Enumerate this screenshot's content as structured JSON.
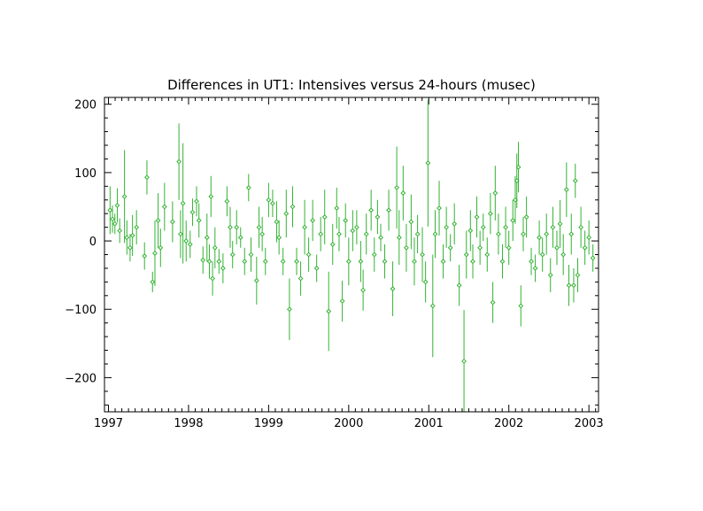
{
  "chart_data": {
    "type": "scatter",
    "title": "Differences in UT1: Intensives versus 24-hours (musec)",
    "xlabel": "",
    "ylabel": "",
    "xlim": [
      1996.95,
      2003.12
    ],
    "ylim": [
      -250,
      210
    ],
    "x_ticks": [
      1997,
      1998,
      1999,
      2000,
      2001,
      2002,
      2003
    ],
    "x_tick_labels": [
      "1997",
      "1998",
      "1999",
      "2000",
      "2001",
      "2002",
      "2003"
    ],
    "y_ticks": [
      200,
      100,
      0,
      -100,
      -200
    ],
    "y_tick_labels": [
      "200",
      "100",
      "0",
      "−100",
      "−200"
    ],
    "grid": false,
    "legend": "none",
    "series": [
      {
        "marker": "open-diamond-with-error-bar",
        "color": "#33b233",
        "points": [
          {
            "x": 1997.02,
            "y": 45,
            "err": 35
          },
          {
            "x": 1997.05,
            "y": 32,
            "err": 20
          },
          {
            "x": 1997.08,
            "y": 25,
            "err": 15
          },
          {
            "x": 1997.11,
            "y": 52,
            "err": 25
          },
          {
            "x": 1997.14,
            "y": 15,
            "err": 18
          },
          {
            "x": 1997.2,
            "y": 65,
            "err": 68
          },
          {
            "x": 1997.23,
            "y": 5,
            "err": 25
          },
          {
            "x": 1997.27,
            "y": -10,
            "err": 20
          },
          {
            "x": 1997.3,
            "y": 8,
            "err": 30
          },
          {
            "x": 1997.35,
            "y": 20,
            "err": 25
          },
          {
            "x": 1997.45,
            "y": -22,
            "err": 20
          },
          {
            "x": 1997.48,
            "y": 93,
            "err": 25
          },
          {
            "x": 1997.55,
            "y": -60,
            "err": 15
          },
          {
            "x": 1997.58,
            "y": -18,
            "err": 48
          },
          {
            "x": 1997.62,
            "y": 30,
            "err": 40
          },
          {
            "x": 1997.65,
            "y": -10,
            "err": 28
          },
          {
            "x": 1997.7,
            "y": 50,
            "err": 35
          },
          {
            "x": 1997.8,
            "y": 28,
            "err": 30
          },
          {
            "x": 1997.88,
            "y": 116,
            "err": 56
          },
          {
            "x": 1997.9,
            "y": 10,
            "err": 35
          },
          {
            "x": 1997.93,
            "y": 55,
            "err": 88
          },
          {
            "x": 1997.97,
            "y": 0,
            "err": 30
          },
          {
            "x": 1998.02,
            "y": -5,
            "err": 20
          },
          {
            "x": 1998.05,
            "y": 42,
            "err": 20
          },
          {
            "x": 1998.1,
            "y": 58,
            "err": 22
          },
          {
            "x": 1998.13,
            "y": 30,
            "err": 25
          },
          {
            "x": 1998.18,
            "y": -28,
            "err": 20
          },
          {
            "x": 1998.23,
            "y": 5,
            "err": 35
          },
          {
            "x": 1998.26,
            "y": -30,
            "err": 25
          },
          {
            "x": 1998.28,
            "y": 65,
            "err": 30
          },
          {
            "x": 1998.3,
            "y": -55,
            "err": 25
          },
          {
            "x": 1998.33,
            "y": -10,
            "err": 30
          },
          {
            "x": 1998.38,
            "y": -30,
            "err": 18
          },
          {
            "x": 1998.43,
            "y": -40,
            "err": 22
          },
          {
            "x": 1998.48,
            "y": 58,
            "err": 22
          },
          {
            "x": 1998.52,
            "y": 20,
            "err": 30
          },
          {
            "x": 1998.55,
            "y": -20,
            "err": 20
          },
          {
            "x": 1998.6,
            "y": 20,
            "err": 25
          },
          {
            "x": 1998.65,
            "y": 5,
            "err": 15
          },
          {
            "x": 1998.7,
            "y": -30,
            "err": 20
          },
          {
            "x": 1998.75,
            "y": 78,
            "err": 20
          },
          {
            "x": 1998.78,
            "y": -20,
            "err": 25
          },
          {
            "x": 1998.85,
            "y": -58,
            "err": 35
          },
          {
            "x": 1998.88,
            "y": 20,
            "err": 30
          },
          {
            "x": 1998.92,
            "y": 10,
            "err": 25
          },
          {
            "x": 1998.96,
            "y": -30,
            "err": 20
          },
          {
            "x": 1999.0,
            "y": 60,
            "err": 25
          },
          {
            "x": 1999.05,
            "y": 55,
            "err": 20
          },
          {
            "x": 1999.1,
            "y": 28,
            "err": 30
          },
          {
            "x": 1999.13,
            "y": 5,
            "err": 25
          },
          {
            "x": 1999.18,
            "y": -30,
            "err": 20
          },
          {
            "x": 1999.22,
            "y": 40,
            "err": 35
          },
          {
            "x": 1999.26,
            "y": -100,
            "err": 45
          },
          {
            "x": 1999.3,
            "y": 50,
            "err": 30
          },
          {
            "x": 1999.35,
            "y": -30,
            "err": 20
          },
          {
            "x": 1999.4,
            "y": -55,
            "err": 25
          },
          {
            "x": 1999.45,
            "y": 20,
            "err": 40
          },
          {
            "x": 1999.5,
            "y": -20,
            "err": 25
          },
          {
            "x": 1999.55,
            "y": 30,
            "err": 30
          },
          {
            "x": 1999.6,
            "y": -40,
            "err": 20
          },
          {
            "x": 1999.65,
            "y": 10,
            "err": 25
          },
          {
            "x": 1999.7,
            "y": 35,
            "err": 40
          },
          {
            "x": 1999.75,
            "y": -103,
            "err": 58
          },
          {
            "x": 1999.8,
            "y": -5,
            "err": 30
          },
          {
            "x": 1999.85,
            "y": 48,
            "err": 30
          },
          {
            "x": 1999.88,
            "y": 10,
            "err": 25
          },
          {
            "x": 1999.92,
            "y": -88,
            "err": 30
          },
          {
            "x": 1999.96,
            "y": 30,
            "err": 25
          },
          {
            "x": 2000.0,
            "y": -30,
            "err": 35
          },
          {
            "x": 2000.05,
            "y": 15,
            "err": 30
          },
          {
            "x": 2000.1,
            "y": 20,
            "err": 25
          },
          {
            "x": 2000.15,
            "y": -30,
            "err": 30
          },
          {
            "x": 2000.18,
            "y": -72,
            "err": 30
          },
          {
            "x": 2000.22,
            "y": 10,
            "err": 30
          },
          {
            "x": 2000.28,
            "y": 45,
            "err": 30
          },
          {
            "x": 2000.32,
            "y": -20,
            "err": 25
          },
          {
            "x": 2000.36,
            "y": 35,
            "err": 25
          },
          {
            "x": 2000.4,
            "y": 5,
            "err": 20
          },
          {
            "x": 2000.45,
            "y": -30,
            "err": 25
          },
          {
            "x": 2000.5,
            "y": 45,
            "err": 30
          },
          {
            "x": 2000.55,
            "y": -70,
            "err": 40
          },
          {
            "x": 2000.6,
            "y": 78,
            "err": 60
          },
          {
            "x": 2000.63,
            "y": 5,
            "err": 40
          },
          {
            "x": 2000.68,
            "y": 70,
            "err": 40
          },
          {
            "x": 2000.72,
            "y": -10,
            "err": 35
          },
          {
            "x": 2000.78,
            "y": 28,
            "err": 40
          },
          {
            "x": 2000.82,
            "y": -30,
            "err": 35
          },
          {
            "x": 2000.86,
            "y": 10,
            "err": 28
          },
          {
            "x": 2000.92,
            "y": -20,
            "err": 40
          },
          {
            "x": 2000.96,
            "y": -60,
            "err": 30
          },
          {
            "x": 2000.99,
            "y": 114,
            "err": 93
          },
          {
            "x": 2001.05,
            "y": -95,
            "err": 75
          },
          {
            "x": 2001.08,
            "y": 10,
            "err": 35
          },
          {
            "x": 2001.13,
            "y": 48,
            "err": 40
          },
          {
            "x": 2001.18,
            "y": -30,
            "err": 25
          },
          {
            "x": 2001.22,
            "y": 20,
            "err": 30
          },
          {
            "x": 2001.27,
            "y": -10,
            "err": 20
          },
          {
            "x": 2001.32,
            "y": 25,
            "err": 30
          },
          {
            "x": 2001.38,
            "y": -65,
            "err": 30
          },
          {
            "x": 2001.44,
            "y": -176,
            "err": 75
          },
          {
            "x": 2001.47,
            "y": -20,
            "err": 35
          },
          {
            "x": 2001.52,
            "y": 15,
            "err": 30
          },
          {
            "x": 2001.55,
            "y": -30,
            "err": 25
          },
          {
            "x": 2001.6,
            "y": 35,
            "err": 30
          },
          {
            "x": 2001.64,
            "y": -10,
            "err": 25
          },
          {
            "x": 2001.68,
            "y": 20,
            "err": 20
          },
          {
            "x": 2001.73,
            "y": -20,
            "err": 25
          },
          {
            "x": 2001.77,
            "y": 40,
            "err": 30
          },
          {
            "x": 2001.8,
            "y": -90,
            "err": 30
          },
          {
            "x": 2001.83,
            "y": 70,
            "err": 40
          },
          {
            "x": 2001.87,
            "y": 10,
            "err": 30
          },
          {
            "x": 2001.92,
            "y": -30,
            "err": 25
          },
          {
            "x": 2001.96,
            "y": 20,
            "err": 30
          },
          {
            "x": 2002.0,
            "y": -10,
            "err": 25
          },
          {
            "x": 2002.05,
            "y": 30,
            "err": 30
          },
          {
            "x": 2002.08,
            "y": 60,
            "err": 35
          },
          {
            "x": 2002.1,
            "y": 88,
            "err": 40
          },
          {
            "x": 2002.12,
            "y": 108,
            "err": 37
          },
          {
            "x": 2002.15,
            "y": -95,
            "err": 30
          },
          {
            "x": 2002.18,
            "y": 10,
            "err": 25
          },
          {
            "x": 2002.22,
            "y": 35,
            "err": 30
          },
          {
            "x": 2002.28,
            "y": -30,
            "err": 20
          },
          {
            "x": 2002.33,
            "y": -40,
            "err": 20
          },
          {
            "x": 2002.38,
            "y": 5,
            "err": 25
          },
          {
            "x": 2002.42,
            "y": -20,
            "err": 25
          },
          {
            "x": 2002.47,
            "y": 10,
            "err": 30
          },
          {
            "x": 2002.52,
            "y": -50,
            "err": 25
          },
          {
            "x": 2002.55,
            "y": 20,
            "err": 30
          },
          {
            "x": 2002.6,
            "y": -10,
            "err": 25
          },
          {
            "x": 2002.64,
            "y": 25,
            "err": 35
          },
          {
            "x": 2002.68,
            "y": -20,
            "err": 30
          },
          {
            "x": 2002.72,
            "y": 75,
            "err": 40
          },
          {
            "x": 2002.75,
            "y": -65,
            "err": 30
          },
          {
            "x": 2002.78,
            "y": 10,
            "err": 30
          },
          {
            "x": 2002.81,
            "y": -65,
            "err": 25
          },
          {
            "x": 2002.83,
            "y": 88,
            "err": 25
          },
          {
            "x": 2002.86,
            "y": -50,
            "err": 25
          },
          {
            "x": 2002.9,
            "y": 20,
            "err": 30
          },
          {
            "x": 2002.95,
            "y": -10,
            "err": 25
          },
          {
            "x": 2003.0,
            "y": 5,
            "err": 25
          },
          {
            "x": 2003.05,
            "y": -25,
            "err": 20
          }
        ]
      }
    ]
  }
}
